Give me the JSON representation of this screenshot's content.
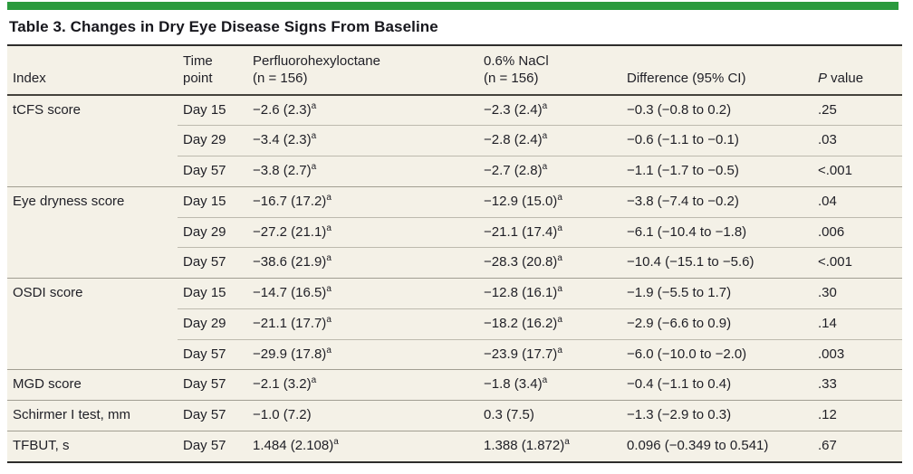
{
  "title": "Table 3. Changes in Dry Eye Disease Signs From Baseline",
  "colors": {
    "accent_green": "#2a9a3d",
    "table_background": "#f4f1e7",
    "rule_dark": "#2e2d2b",
    "text": "#1f1f26"
  },
  "table": {
    "columns": [
      {
        "id": "index",
        "lines": [
          "Index"
        ]
      },
      {
        "id": "time",
        "lines": [
          "Time",
          "point"
        ]
      },
      {
        "id": "pfho",
        "lines": [
          "Perfluorohexyloctane",
          "(n = 156)"
        ]
      },
      {
        "id": "nacl",
        "lines": [
          "0.6% NaCl",
          "(n = 156)"
        ]
      },
      {
        "id": "diff",
        "lines": [
          "Difference (95% CI)"
        ]
      },
      {
        "id": "p",
        "lines": [
          "P value"
        ],
        "italic_first": true
      }
    ],
    "rows": [
      {
        "group_start": true,
        "index": "tCFS score",
        "time": "Day 15",
        "pfho": {
          "text": "−2.6 (2.3)",
          "sup": "a"
        },
        "nacl": {
          "text": "−2.3 (2.4)",
          "sup": "a"
        },
        "diff": "−0.3 (−0.8 to 0.2)",
        "p": ".25"
      },
      {
        "group_start": false,
        "index": "",
        "time": "Day 29",
        "pfho": {
          "text": "−3.4 (2.3)",
          "sup": "a"
        },
        "nacl": {
          "text": "−2.8 (2.4)",
          "sup": "a"
        },
        "diff": "−0.6 (−1.1 to −0.1)",
        "p": ".03"
      },
      {
        "group_start": false,
        "index": "",
        "time": "Day 57",
        "pfho": {
          "text": "−3.8 (2.7)",
          "sup": "a"
        },
        "nacl": {
          "text": "−2.7 (2.8)",
          "sup": "a"
        },
        "diff": "−1.1 (−1.7 to −0.5)",
        "p": "<.001"
      },
      {
        "group_start": true,
        "index": "Eye dryness score",
        "time": "Day 15",
        "pfho": {
          "text": "−16.7 (17.2)",
          "sup": "a"
        },
        "nacl": {
          "text": "−12.9 (15.0)",
          "sup": "a"
        },
        "diff": "−3.8 (−7.4 to −0.2)",
        "p": ".04"
      },
      {
        "group_start": false,
        "index": "",
        "time": "Day 29",
        "pfho": {
          "text": "−27.2 (21.1)",
          "sup": "a"
        },
        "nacl": {
          "text": "−21.1 (17.4)",
          "sup": "a"
        },
        "diff": "−6.1 (−10.4 to −1.8)",
        "p": ".006"
      },
      {
        "group_start": false,
        "index": "",
        "time": "Day 57",
        "pfho": {
          "text": "−38.6 (21.9)",
          "sup": "a"
        },
        "nacl": {
          "text": "−28.3 (20.8)",
          "sup": "a"
        },
        "diff": "−10.4 (−15.1 to −5.6)",
        "p": "<.001"
      },
      {
        "group_start": true,
        "index": "OSDI score",
        "time": "Day 15",
        "pfho": {
          "text": "−14.7 (16.5)",
          "sup": "a"
        },
        "nacl": {
          "text": "−12.8 (16.1)",
          "sup": "a"
        },
        "diff": "−1.9 (−5.5 to 1.7)",
        "p": ".30"
      },
      {
        "group_start": false,
        "index": "",
        "time": "Day 29",
        "pfho": {
          "text": "−21.1 (17.7)",
          "sup": "a"
        },
        "nacl": {
          "text": "−18.2 (16.2)",
          "sup": "a"
        },
        "diff": "−2.9 (−6.6 to 0.9)",
        "p": ".14"
      },
      {
        "group_start": false,
        "index": "",
        "time": "Day 57",
        "pfho": {
          "text": "−29.9 (17.8)",
          "sup": "a"
        },
        "nacl": {
          "text": "−23.9 (17.7)",
          "sup": "a"
        },
        "diff": "−6.0 (−10.0 to −2.0)",
        "p": ".003"
      },
      {
        "group_start": true,
        "index": "MGD score",
        "time": "Day 57",
        "pfho": {
          "text": "−2.1 (3.2)",
          "sup": "a"
        },
        "nacl": {
          "text": "−1.8 (3.4)",
          "sup": "a"
        },
        "diff": "−0.4 (−1.1 to 0.4)",
        "p": ".33"
      },
      {
        "group_start": true,
        "index": "Schirmer I test, mm",
        "time": "Day 57",
        "pfho": {
          "text": "−1.0 (7.2)"
        },
        "nacl": {
          "text": "0.3 (7.5)"
        },
        "diff": "−1.3 (−2.9 to 0.3)",
        "p": ".12"
      },
      {
        "group_start": true,
        "index": "TFBUT, s",
        "time": "Day 57",
        "pfho": {
          "text": "1.484 (2.108)",
          "sup": "a"
        },
        "nacl": {
          "text": "1.388 (1.872)",
          "sup": "a"
        },
        "diff": "0.096 (−0.349 to 0.541)",
        "p": ".67"
      }
    ]
  }
}
